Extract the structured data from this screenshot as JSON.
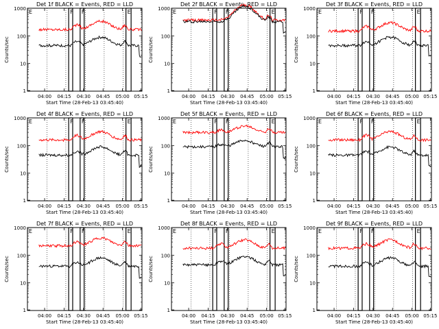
{
  "chart_data": [
    {
      "type": "line",
      "title": "Det 1f BLACK = Events, RED = LLD",
      "xlabel": "Start Time (28-Feb-13 03:45:40)",
      "ylabel": "Counts/sec",
      "x_ticks": [
        "04:00",
        "04:15",
        "04:30",
        "04:45",
        "05:00",
        "05:15"
      ],
      "y_ticks": [
        "1",
        "10",
        "100",
        "1000"
      ],
      "y_scale": "log",
      "ylim": [
        1,
        1000
      ],
      "series": [
        {
          "color": "#ff0000",
          "level": 170,
          "bump": 2.0,
          "pre": 0.45
        },
        {
          "color": "#000000",
          "level": 45,
          "bump": 2.0,
          "pre": 0.35
        }
      ]
    },
    {
      "type": "line",
      "title": "Det 2f BLACK = Events, RED = LLD",
      "xlabel": "Start Time (28-Feb-13 03:45:40)",
      "ylabel": "Counts/sec",
      "x_ticks": [
        "04:00",
        "04:15",
        "04:30",
        "04:45",
        "05:00",
        "05:15"
      ],
      "y_ticks": [
        "1",
        "10",
        "100",
        "1000"
      ],
      "y_scale": "log",
      "ylim": [
        1,
        1000
      ],
      "series": [
        {
          "color": "#ff0000",
          "level": 370,
          "bump": 3.6,
          "pre": 0.0
        },
        {
          "color": "#000000",
          "level": 330,
          "bump": 3.6,
          "pre": 0.0
        }
      ]
    },
    {
      "type": "line",
      "title": "Det 3f BLACK = Events, RED = LLD",
      "xlabel": "Start Time (28-Feb-13 03:45:40)",
      "ylabel": "Counts/sec",
      "x_ticks": [
        "04:00",
        "04:15",
        "04:30",
        "04:45",
        "05:00",
        "05:15"
      ],
      "y_ticks": [
        "1",
        "10",
        "100",
        "1000"
      ],
      "y_scale": "log",
      "ylim": [
        1,
        1000
      ],
      "series": [
        {
          "color": "#ff0000",
          "level": 150,
          "bump": 2.0,
          "pre": 0.45
        },
        {
          "color": "#000000",
          "level": 45,
          "bump": 2.0,
          "pre": 0.35
        }
      ]
    },
    {
      "type": "line",
      "title": "Det 4f BLACK = Events, RED = LLD",
      "xlabel": "Start Time (28-Feb-13 03:45:40)",
      "ylabel": "Counts/sec",
      "x_ticks": [
        "04:00",
        "04:15",
        "04:30",
        "04:45",
        "05:00",
        "05:15"
      ],
      "y_ticks": [
        "1",
        "10",
        "100",
        "1000"
      ],
      "y_scale": "log",
      "ylim": [
        1,
        1000
      ],
      "series": [
        {
          "color": "#ff0000",
          "level": 160,
          "bump": 2.0,
          "pre": 0.45
        },
        {
          "color": "#000000",
          "level": 45,
          "bump": 2.0,
          "pre": 0.35
        }
      ]
    },
    {
      "type": "line",
      "title": "Det 5f BLACK = Events, RED = LLD",
      "xlabel": "Start Time (28-Feb-13 03:45:40)",
      "ylabel": "Counts/sec",
      "x_ticks": [
        "04:00",
        "04:15",
        "04:30",
        "04:45",
        "05:00",
        "05:15"
      ],
      "y_ticks": [
        "1",
        "10",
        "100",
        "1000"
      ],
      "y_scale": "log",
      "ylim": [
        1,
        1000
      ],
      "series": [
        {
          "color": "#ff0000",
          "level": 300,
          "bump": 1.7,
          "pre": 0.2
        },
        {
          "color": "#000000",
          "level": 90,
          "bump": 1.7,
          "pre": 0.2
        }
      ]
    },
    {
      "type": "line",
      "title": "Det 6f BLACK = Events, RED = LLD",
      "xlabel": "Start Time (28-Feb-13 03:45:40)",
      "ylabel": "Counts/sec",
      "x_ticks": [
        "04:00",
        "04:15",
        "04:30",
        "04:45",
        "05:00",
        "05:15"
      ],
      "y_ticks": [
        "1",
        "10",
        "100",
        "1000"
      ],
      "y_scale": "log",
      "ylim": [
        1,
        1000
      ],
      "series": [
        {
          "color": "#ff0000",
          "level": 160,
          "bump": 2.0,
          "pre": 0.45
        },
        {
          "color": "#000000",
          "level": 45,
          "bump": 2.0,
          "pre": 0.35
        }
      ]
    },
    {
      "type": "line",
      "title": "Det 7f BLACK = Events, RED = LLD",
      "xlabel": "Start Time (28-Feb-13 03:45:40)",
      "ylabel": "Counts/sec",
      "x_ticks": [
        "04:00",
        "04:15",
        "04:30",
        "04:45",
        "05:00",
        "05:15"
      ],
      "y_ticks": [
        "1",
        "10",
        "100",
        "1000"
      ],
      "y_scale": "log",
      "ylim": [
        1,
        1000
      ],
      "series": [
        {
          "color": "#ff0000",
          "level": 220,
          "bump": 1.9,
          "pre": 0.35
        },
        {
          "color": "#000000",
          "level": 40,
          "bump": 2.0,
          "pre": 0.35
        }
      ]
    },
    {
      "type": "line",
      "title": "Det 8f BLACK = Events, RED = LLD",
      "xlabel": "Start Time (28-Feb-13 03:45:40)",
      "ylabel": "Counts/sec",
      "x_ticks": [
        "04:00",
        "04:15",
        "04:30",
        "04:45",
        "05:00",
        "05:15"
      ],
      "y_ticks": [
        "1",
        "10",
        "100",
        "1000"
      ],
      "y_scale": "log",
      "ylim": [
        1,
        1000
      ],
      "series": [
        {
          "color": "#ff0000",
          "level": 180,
          "bump": 2.0,
          "pre": 0.4
        },
        {
          "color": "#000000",
          "level": 45,
          "bump": 2.0,
          "pre": 0.35
        }
      ]
    },
    {
      "type": "line",
      "title": "Det 9f BLACK = Events, RED = LLD",
      "xlabel": "Start Time (28-Feb-13 03:45:40)",
      "ylabel": "Counts/sec",
      "x_ticks": [
        "04:00",
        "04:15",
        "04:30",
        "04:45",
        "05:00",
        "05:15"
      ],
      "y_ticks": [
        "1",
        "10",
        "100",
        "1000"
      ],
      "y_scale": "log",
      "ylim": [
        1,
        1000
      ],
      "series": [
        {
          "color": "#ff0000",
          "level": 180,
          "bump": 2.0,
          "pre": 0.4
        },
        {
          "color": "#000000",
          "level": 40,
          "bump": 2.0,
          "pre": 0.35
        }
      ]
    }
  ]
}
